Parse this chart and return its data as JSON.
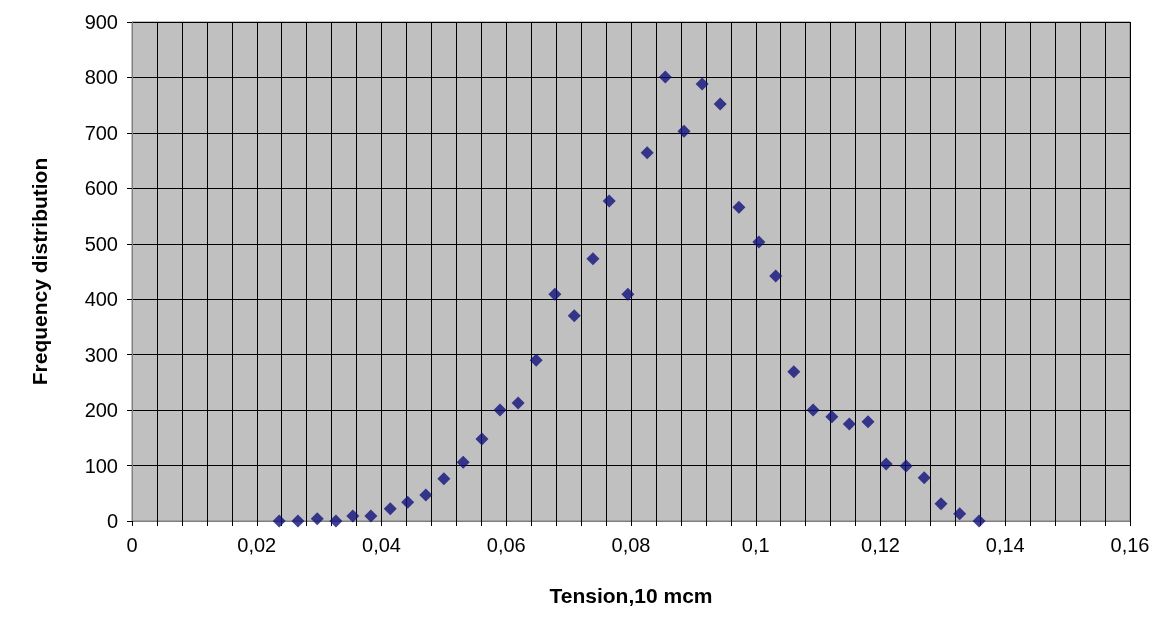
{
  "chart_data": {
    "type": "scatter",
    "xlabel": "Tension,10 mcm",
    "ylabel": "Frequency distribution",
    "x": [
      0.0236,
      0.0266,
      0.0297,
      0.0327,
      0.0354,
      0.0383,
      0.0414,
      0.0442,
      0.0471,
      0.05,
      0.0531,
      0.0561,
      0.059,
      0.0619,
      0.0648,
      0.0678,
      0.0709,
      0.0739,
      0.0765,
      0.0795,
      0.0826,
      0.0855,
      0.0885,
      0.0914,
      0.0943,
      0.0973,
      0.1005,
      0.1032,
      0.1061,
      0.1092,
      0.1122,
      0.115,
      0.118,
      0.1209,
      0.1241,
      0.127,
      0.1297,
      0.1327,
      0.1358
    ],
    "series": [
      {
        "color": "#10107a",
        "values": [
          0,
          0,
          4,
          0,
          9,
          9,
          22,
          34,
          47,
          76,
          106,
          148,
          200,
          213,
          290,
          409,
          370,
          473,
          577,
          409,
          664,
          801,
          703,
          788,
          752,
          566,
          503,
          442,
          269,
          200,
          188,
          175,
          179,
          103,
          99,
          78,
          31,
          13,
          0
        ]
      }
    ],
    "marker": "diamond",
    "grid": true,
    "xlim": [
      0,
      0.16
    ],
    "xticks": [
      {
        "value": 0,
        "label": "0"
      },
      {
        "value": 0.004,
        "label": null
      },
      {
        "value": 0.008,
        "label": null
      },
      {
        "value": 0.012,
        "label": null
      },
      {
        "value": 0.016,
        "label": null
      },
      {
        "value": 0.02,
        "label": "0,02"
      },
      {
        "value": 0.024,
        "label": null
      },
      {
        "value": 0.028,
        "label": null
      },
      {
        "value": 0.032,
        "label": null
      },
      {
        "value": 0.036,
        "label": null
      },
      {
        "value": 0.04,
        "label": "0,04"
      },
      {
        "value": 0.044,
        "label": null
      },
      {
        "value": 0.048,
        "label": null
      },
      {
        "value": 0.052,
        "label": null
      },
      {
        "value": 0.056,
        "label": null
      },
      {
        "value": 0.06,
        "label": "0,06"
      },
      {
        "value": 0.064,
        "label": null
      },
      {
        "value": 0.068,
        "label": null
      },
      {
        "value": 0.072,
        "label": null
      },
      {
        "value": 0.076,
        "label": null
      },
      {
        "value": 0.08,
        "label": "0,08"
      },
      {
        "value": 0.084,
        "label": null
      },
      {
        "value": 0.088,
        "label": null
      },
      {
        "value": 0.092,
        "label": null
      },
      {
        "value": 0.096,
        "label": null
      },
      {
        "value": 0.1,
        "label": "0,1"
      },
      {
        "value": 0.104,
        "label": null
      },
      {
        "value": 0.108,
        "label": null
      },
      {
        "value": 0.112,
        "label": null
      },
      {
        "value": 0.116,
        "label": null
      },
      {
        "value": 0.12,
        "label": "0,12"
      },
      {
        "value": 0.124,
        "label": null
      },
      {
        "value": 0.128,
        "label": null
      },
      {
        "value": 0.132,
        "label": null
      },
      {
        "value": 0.136,
        "label": null
      },
      {
        "value": 0.14,
        "label": "0,14"
      },
      {
        "value": 0.144,
        "label": null
      },
      {
        "value": 0.148,
        "label": null
      },
      {
        "value": 0.152,
        "label": null
      },
      {
        "value": 0.156,
        "label": null
      },
      {
        "value": 0.16,
        "label": "0,16"
      }
    ],
    "ylim": [
      0,
      900
    ],
    "yticks": [
      0,
      100,
      200,
      300,
      400,
      500,
      600,
      700,
      800,
      900
    ]
  }
}
